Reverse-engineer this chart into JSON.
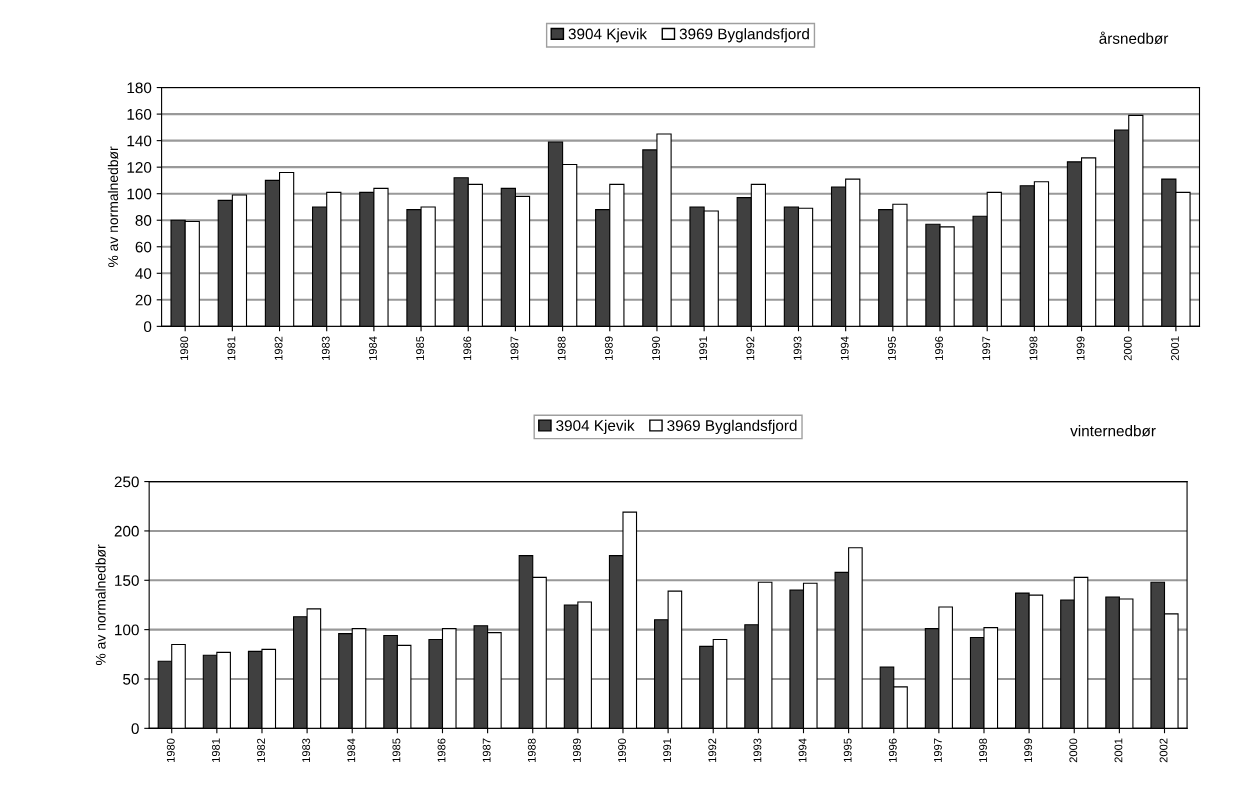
{
  "chart_data": [
    {
      "type": "bar",
      "title": "årsnedbør",
      "ylabel": "% av normalnedbør",
      "categories": [
        "1980",
        "1981",
        "1982",
        "1983",
        "1984",
        "1985",
        "1986",
        "1987",
        "1988",
        "1989",
        "1990",
        "1991",
        "1992",
        "1993",
        "1994",
        "1995",
        "1996",
        "1997",
        "1998",
        "1999",
        "2000",
        "2001"
      ],
      "series": [
        {
          "name": "3904 Kjevik",
          "color": "#404040",
          "values": [
            80,
            95,
            110,
            90,
            101,
            88,
            112,
            104,
            139,
            88,
            133,
            90,
            97,
            90,
            105,
            88,
            77,
            83,
            106,
            124,
            148,
            111
          ]
        },
        {
          "name": "3969 Byglandsfjord",
          "color": "#ffffff",
          "values": [
            79,
            99,
            116,
            101,
            104,
            90,
            107,
            98,
            122,
            107,
            145,
            87,
            107,
            89,
            111,
            92,
            75,
            101,
            109,
            127,
            159,
            101
          ]
        }
      ],
      "ylim": [
        0,
        180
      ],
      "yticks": [
        0,
        20,
        40,
        60,
        80,
        100,
        120,
        140,
        160,
        180
      ],
      "grid": "y",
      "legend": "top"
    },
    {
      "type": "bar",
      "title": "vinternedbør",
      "ylabel": "% av normalnedbør",
      "categories": [
        "1980",
        "1981",
        "1982",
        "1983",
        "1984",
        "1985",
        "1986",
        "1987",
        "1988",
        "1989",
        "1990",
        "1991",
        "1992",
        "1993",
        "1994",
        "1995",
        "1996",
        "1997",
        "1998",
        "1999",
        "2000",
        "2001",
        "2002"
      ],
      "series": [
        {
          "name": "3904 Kjevik",
          "color": "#404040",
          "values": [
            68,
            74,
            78,
            113,
            96,
            94,
            90,
            104,
            175,
            125,
            175,
            110,
            83,
            105,
            140,
            158,
            62,
            101,
            92,
            137,
            130,
            133,
            148
          ]
        },
        {
          "name": "3969 Byglandsfjord",
          "color": "#ffffff",
          "values": [
            85,
            77,
            80,
            121,
            101,
            84,
            101,
            97,
            153,
            128,
            219,
            139,
            90,
            148,
            147,
            183,
            42,
            123,
            102,
            135,
            153,
            131,
            116
          ]
        }
      ],
      "ylim": [
        0,
        250
      ],
      "yticks": [
        0,
        50,
        100,
        150,
        200,
        250
      ],
      "grid": "y",
      "legend": "top"
    }
  ]
}
